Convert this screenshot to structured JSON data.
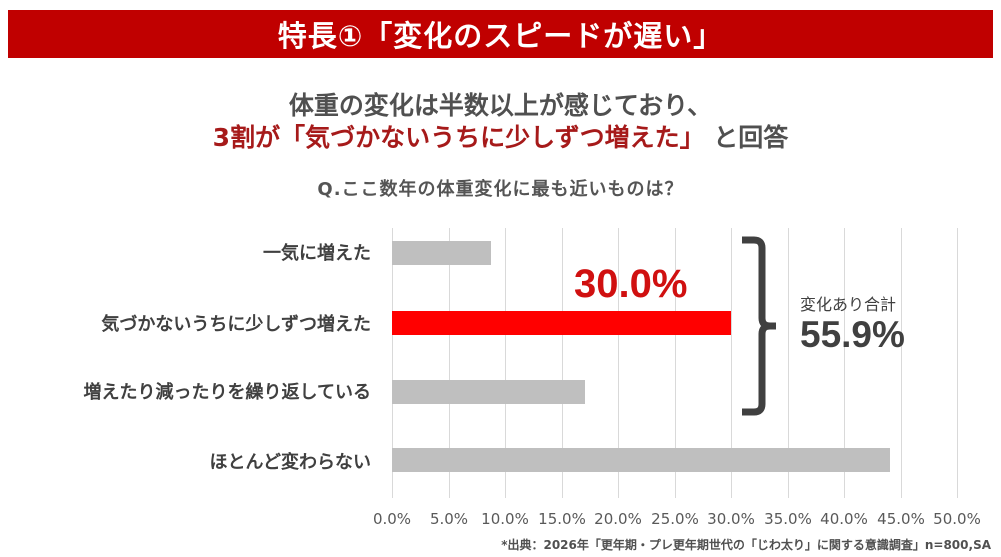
{
  "banner": {
    "title": "特長①「変化のスピードが遅い」"
  },
  "headline": {
    "line1": "体重の変化は半数以上が感じており、",
    "line2_red": "3割が「気づかないうちに少しずつ増えた」",
    "line2_rest": "と回答"
  },
  "question": "Q.ここ数年の体重変化に最も近いものは？",
  "annotation": {
    "highlight_value": "30.0%",
    "sum_label": "変化あり合計",
    "sum_value": "55.9%"
  },
  "source": "*出典：2026年「更年期・プレ更年期世代の「じわ太り」に関する意識調査」n=800,SA",
  "colors": {
    "banner": "#c00000",
    "highlight_bar": "#ff0000",
    "bar": "#bfbfbf",
    "headline_red": "#a61a1a"
  },
  "chart_data": {
    "type": "bar",
    "orientation": "horizontal",
    "title": "Q.ここ数年の体重変化に最も近いものは？",
    "categories": [
      "一気に増えた",
      "気づかないうちに少しずつ増えた",
      "増えたり減ったりを繰り返している",
      "ほとんど変わらない"
    ],
    "values": [
      8.8,
      30.0,
      17.1,
      44.1
    ],
    "highlight_index": 1,
    "data_labels": {
      "1": "30.0%"
    },
    "xlabel": "",
    "ylabel": "",
    "xlim": [
      0,
      50
    ],
    "x_ticks": [
      "0.0%",
      "5.0%",
      "10.0%",
      "15.0%",
      "20.0%",
      "25.0%",
      "30.0%",
      "35.0%",
      "40.0%",
      "45.0%",
      "50.0%"
    ],
    "grid": true,
    "annotations": [
      {
        "type": "bracket",
        "spans": [
          0,
          1,
          2
        ],
        "label": "変化あり合計",
        "value": "55.9%"
      }
    ]
  }
}
